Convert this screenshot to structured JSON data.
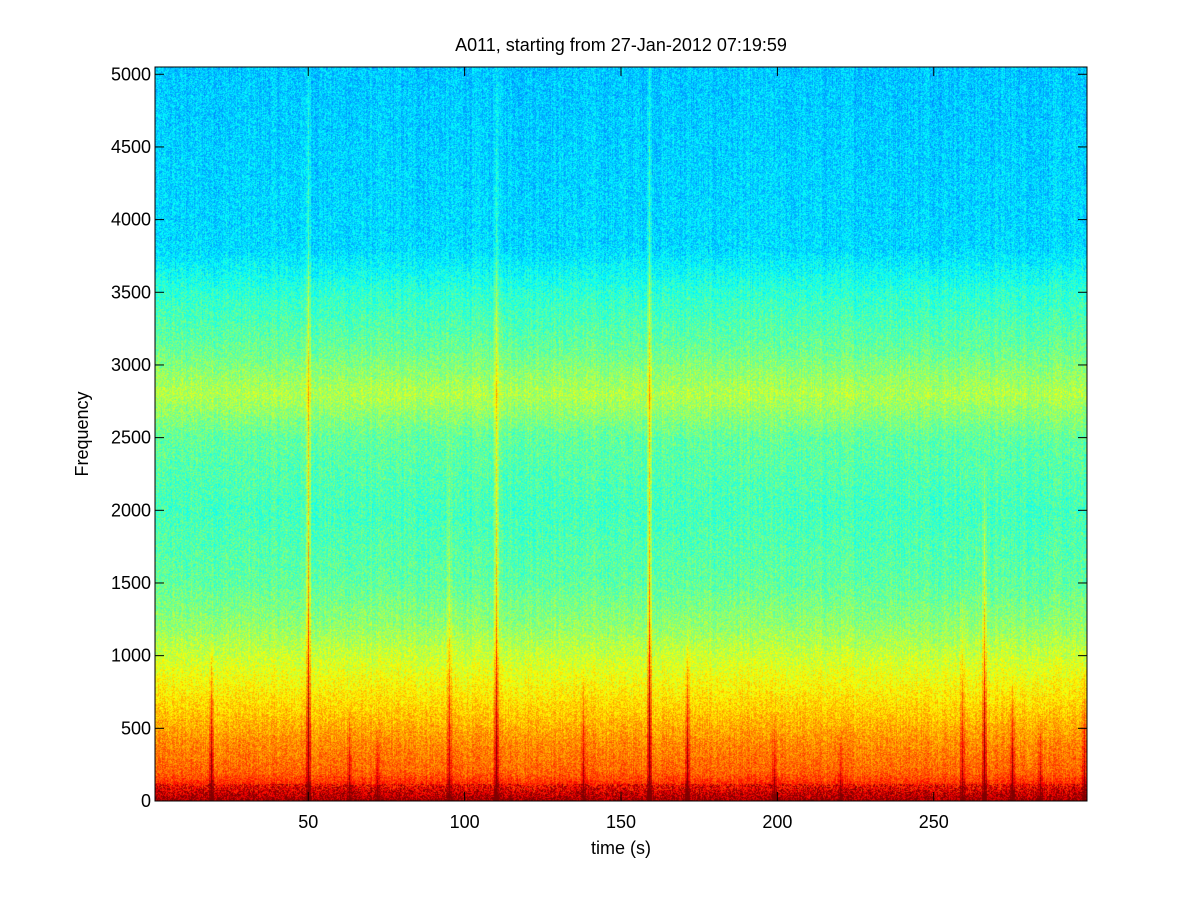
{
  "chart_data": {
    "type": "heatmap",
    "title": "A011, starting from 27-Jan-2012 07:19:59",
    "xlabel": "time (s)",
    "ylabel": "Frequency",
    "xlim": [
      1,
      299
    ],
    "ylim": [
      0,
      5050
    ],
    "xticks": [
      50,
      100,
      150,
      200,
      250
    ],
    "yticks": [
      0,
      500,
      1000,
      1500,
      2000,
      2500,
      3000,
      3500,
      4000,
      4500,
      5000
    ],
    "colormap": "jet",
    "grid": false,
    "legend": "none",
    "intensity_profile_by_frequency": [
      {
        "frequency": 0,
        "level": 0.95
      },
      {
        "frequency": 100,
        "level": 0.85
      },
      {
        "frequency": 200,
        "level": 0.78
      },
      {
        "frequency": 400,
        "level": 0.74
      },
      {
        "frequency": 600,
        "level": 0.68
      },
      {
        "frequency": 900,
        "level": 0.6
      },
      {
        "frequency": 1200,
        "level": 0.52
      },
      {
        "frequency": 1500,
        "level": 0.47
      },
      {
        "frequency": 2000,
        "level": 0.44
      },
      {
        "frequency": 2500,
        "level": 0.47
      },
      {
        "frequency": 2800,
        "level": 0.55
      },
      {
        "frequency": 3100,
        "level": 0.48
      },
      {
        "frequency": 3500,
        "level": 0.42
      },
      {
        "frequency": 3800,
        "level": 0.34
      },
      {
        "frequency": 5050,
        "level": 0.32
      }
    ],
    "broadband_transients": [
      {
        "time": 19,
        "top_frequency": 1100,
        "strength": 0.85
      },
      {
        "time": 50,
        "top_frequency": 5050,
        "strength": 1.0
      },
      {
        "time": 63,
        "top_frequency": 700,
        "strength": 0.6
      },
      {
        "time": 72,
        "top_frequency": 500,
        "strength": 0.5
      },
      {
        "time": 95,
        "top_frequency": 2500,
        "strength": 0.6
      },
      {
        "time": 110,
        "top_frequency": 5050,
        "strength": 0.9
      },
      {
        "time": 138,
        "top_frequency": 900,
        "strength": 0.6
      },
      {
        "time": 159,
        "top_frequency": 5050,
        "strength": 1.0
      },
      {
        "time": 171,
        "top_frequency": 1100,
        "strength": 0.85
      },
      {
        "time": 199,
        "top_frequency": 600,
        "strength": 0.6
      },
      {
        "time": 220,
        "top_frequency": 500,
        "strength": 0.5
      },
      {
        "time": 259,
        "top_frequency": 1400,
        "strength": 0.6
      },
      {
        "time": 266,
        "top_frequency": 2300,
        "strength": 0.9
      },
      {
        "time": 275,
        "top_frequency": 800,
        "strength": 0.8
      },
      {
        "time": 284,
        "top_frequency": 600,
        "strength": 0.6
      },
      {
        "time": 298,
        "top_frequency": 900,
        "strength": 0.7
      }
    ]
  }
}
